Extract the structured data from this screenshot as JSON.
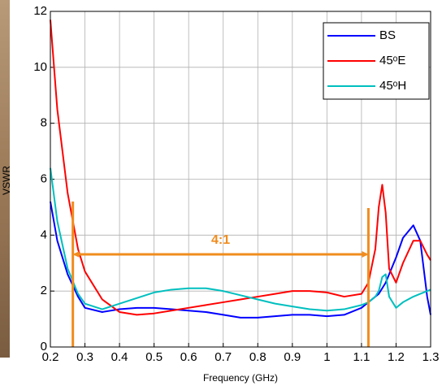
{
  "chart_data": {
    "type": "line",
    "x_label": "Frequency (GHz)",
    "y_label": "VSWR",
    "xlim": [
      0.2,
      1.3
    ],
    "ylim": [
      0,
      12
    ],
    "xticks": [
      0.2,
      0.3,
      0.4,
      0.5,
      0.6,
      0.7,
      0.8,
      0.9,
      1,
      1.1,
      1.2,
      1.3
    ],
    "yticks": [
      0,
      2,
      4,
      6,
      8,
      10,
      12
    ],
    "grid": true,
    "legend": "upper right",
    "x": [
      0.2,
      0.22,
      0.25,
      0.28,
      0.3,
      0.35,
      0.4,
      0.45,
      0.5,
      0.55,
      0.6,
      0.65,
      0.7,
      0.75,
      0.8,
      0.85,
      0.9,
      0.95,
      1.0,
      1.05,
      1.1,
      1.12,
      1.14,
      1.15,
      1.16,
      1.17,
      1.18,
      1.2,
      1.22,
      1.25,
      1.27,
      1.29,
      1.3
    ],
    "series": [
      {
        "name": "BS",
        "color": "#0000ff",
        "values": [
          5.2,
          3.8,
          2.6,
          1.8,
          1.4,
          1.25,
          1.35,
          1.4,
          1.4,
          1.35,
          1.3,
          1.25,
          1.15,
          1.05,
          1.05,
          1.1,
          1.15,
          1.15,
          1.1,
          1.15,
          1.4,
          1.6,
          1.8,
          1.9,
          2.1,
          2.3,
          2.6,
          3.2,
          3.9,
          4.35,
          3.8,
          1.8,
          1.15
        ]
      },
      {
        "name": "45ᵒE",
        "color": "#ff0000",
        "values": [
          11.7,
          8.5,
          5.5,
          3.5,
          2.7,
          1.7,
          1.25,
          1.15,
          1.2,
          1.3,
          1.4,
          1.5,
          1.6,
          1.7,
          1.8,
          1.9,
          2.0,
          2.0,
          1.95,
          1.8,
          1.9,
          2.3,
          3.5,
          5.0,
          5.8,
          4.8,
          2.8,
          2.3,
          3.0,
          3.8,
          3.8,
          3.3,
          3.1
        ]
      },
      {
        "name": "45ᵒH",
        "color": "#00bfbf",
        "values": [
          6.4,
          4.5,
          2.8,
          1.9,
          1.55,
          1.35,
          1.55,
          1.75,
          1.95,
          2.05,
          2.1,
          2.1,
          2.0,
          1.85,
          1.7,
          1.55,
          1.45,
          1.35,
          1.3,
          1.35,
          1.5,
          1.6,
          1.8,
          2.0,
          2.5,
          2.6,
          1.8,
          1.4,
          1.6,
          1.8,
          1.9,
          2.0,
          2.05
        ]
      }
    ],
    "band": {
      "label": "4:1",
      "x": [
        0.265,
        1.12
      ],
      "color": "#f08c1e"
    }
  }
}
